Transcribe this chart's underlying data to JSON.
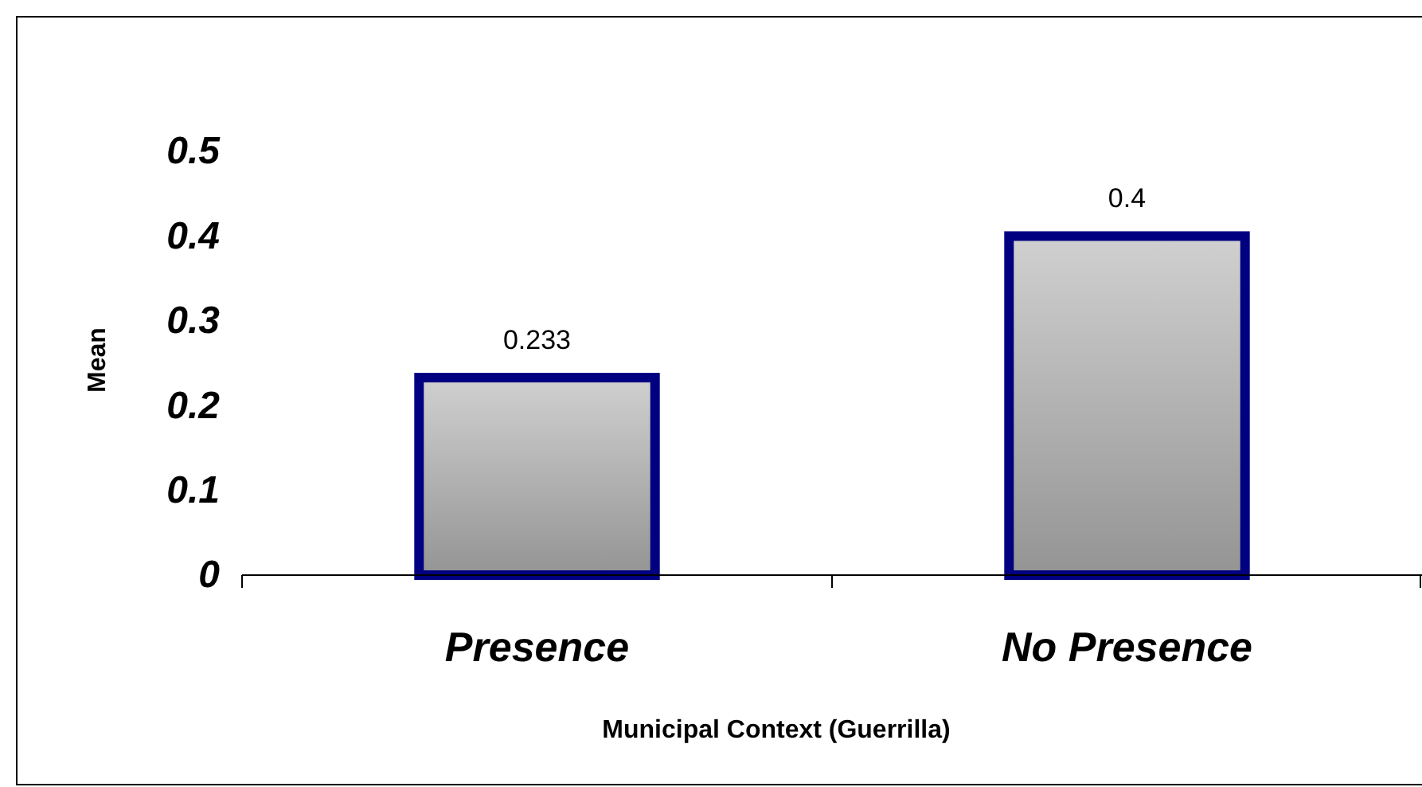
{
  "chart_data": {
    "type": "bar",
    "xlabel": "Municipal Context (Guerrilla)",
    "ylabel": "Mean",
    "categories": [
      "Presence",
      "No Presence"
    ],
    "values": [
      0.233,
      0.4
    ],
    "color": "#000080",
    "ylim": [
      0,
      0.5
    ],
    "yticks": [
      0,
      0.1,
      0.2,
      0.3,
      0.4,
      0.5
    ],
    "data_labels": true,
    "grid": false
  }
}
